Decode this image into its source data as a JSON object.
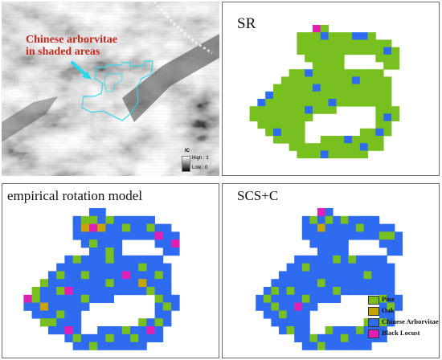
{
  "panels": {
    "ic": {
      "annotation_line1": "Chinese arborvitae",
      "annotation_line2": "in shaded areas",
      "legend_title": "IC",
      "legend_high": "High : 1",
      "legend_low": "Low : 0"
    },
    "sr": {
      "title": "SR"
    },
    "erm": {
      "title": "empirical rotation model"
    },
    "scs": {
      "title": "SCS+C"
    }
  },
  "legend": {
    "items": [
      {
        "label": "Pine",
        "color": "#77c01f"
      },
      {
        "label": "Oak",
        "color": "#c9a400"
      },
      {
        "label": "Chinese Arborvitae",
        "color": "#2e6bf0"
      },
      {
        "label": "Black Locust",
        "color": "#e21fb4"
      }
    ]
  },
  "colors": {
    "pine": "#77c01f",
    "oak": "#c9a400",
    "arborvitae": "#2e6bf0",
    "locust": "#e21fb4",
    "annotation": "#c8261d",
    "highlight": "#27d9ec"
  }
}
